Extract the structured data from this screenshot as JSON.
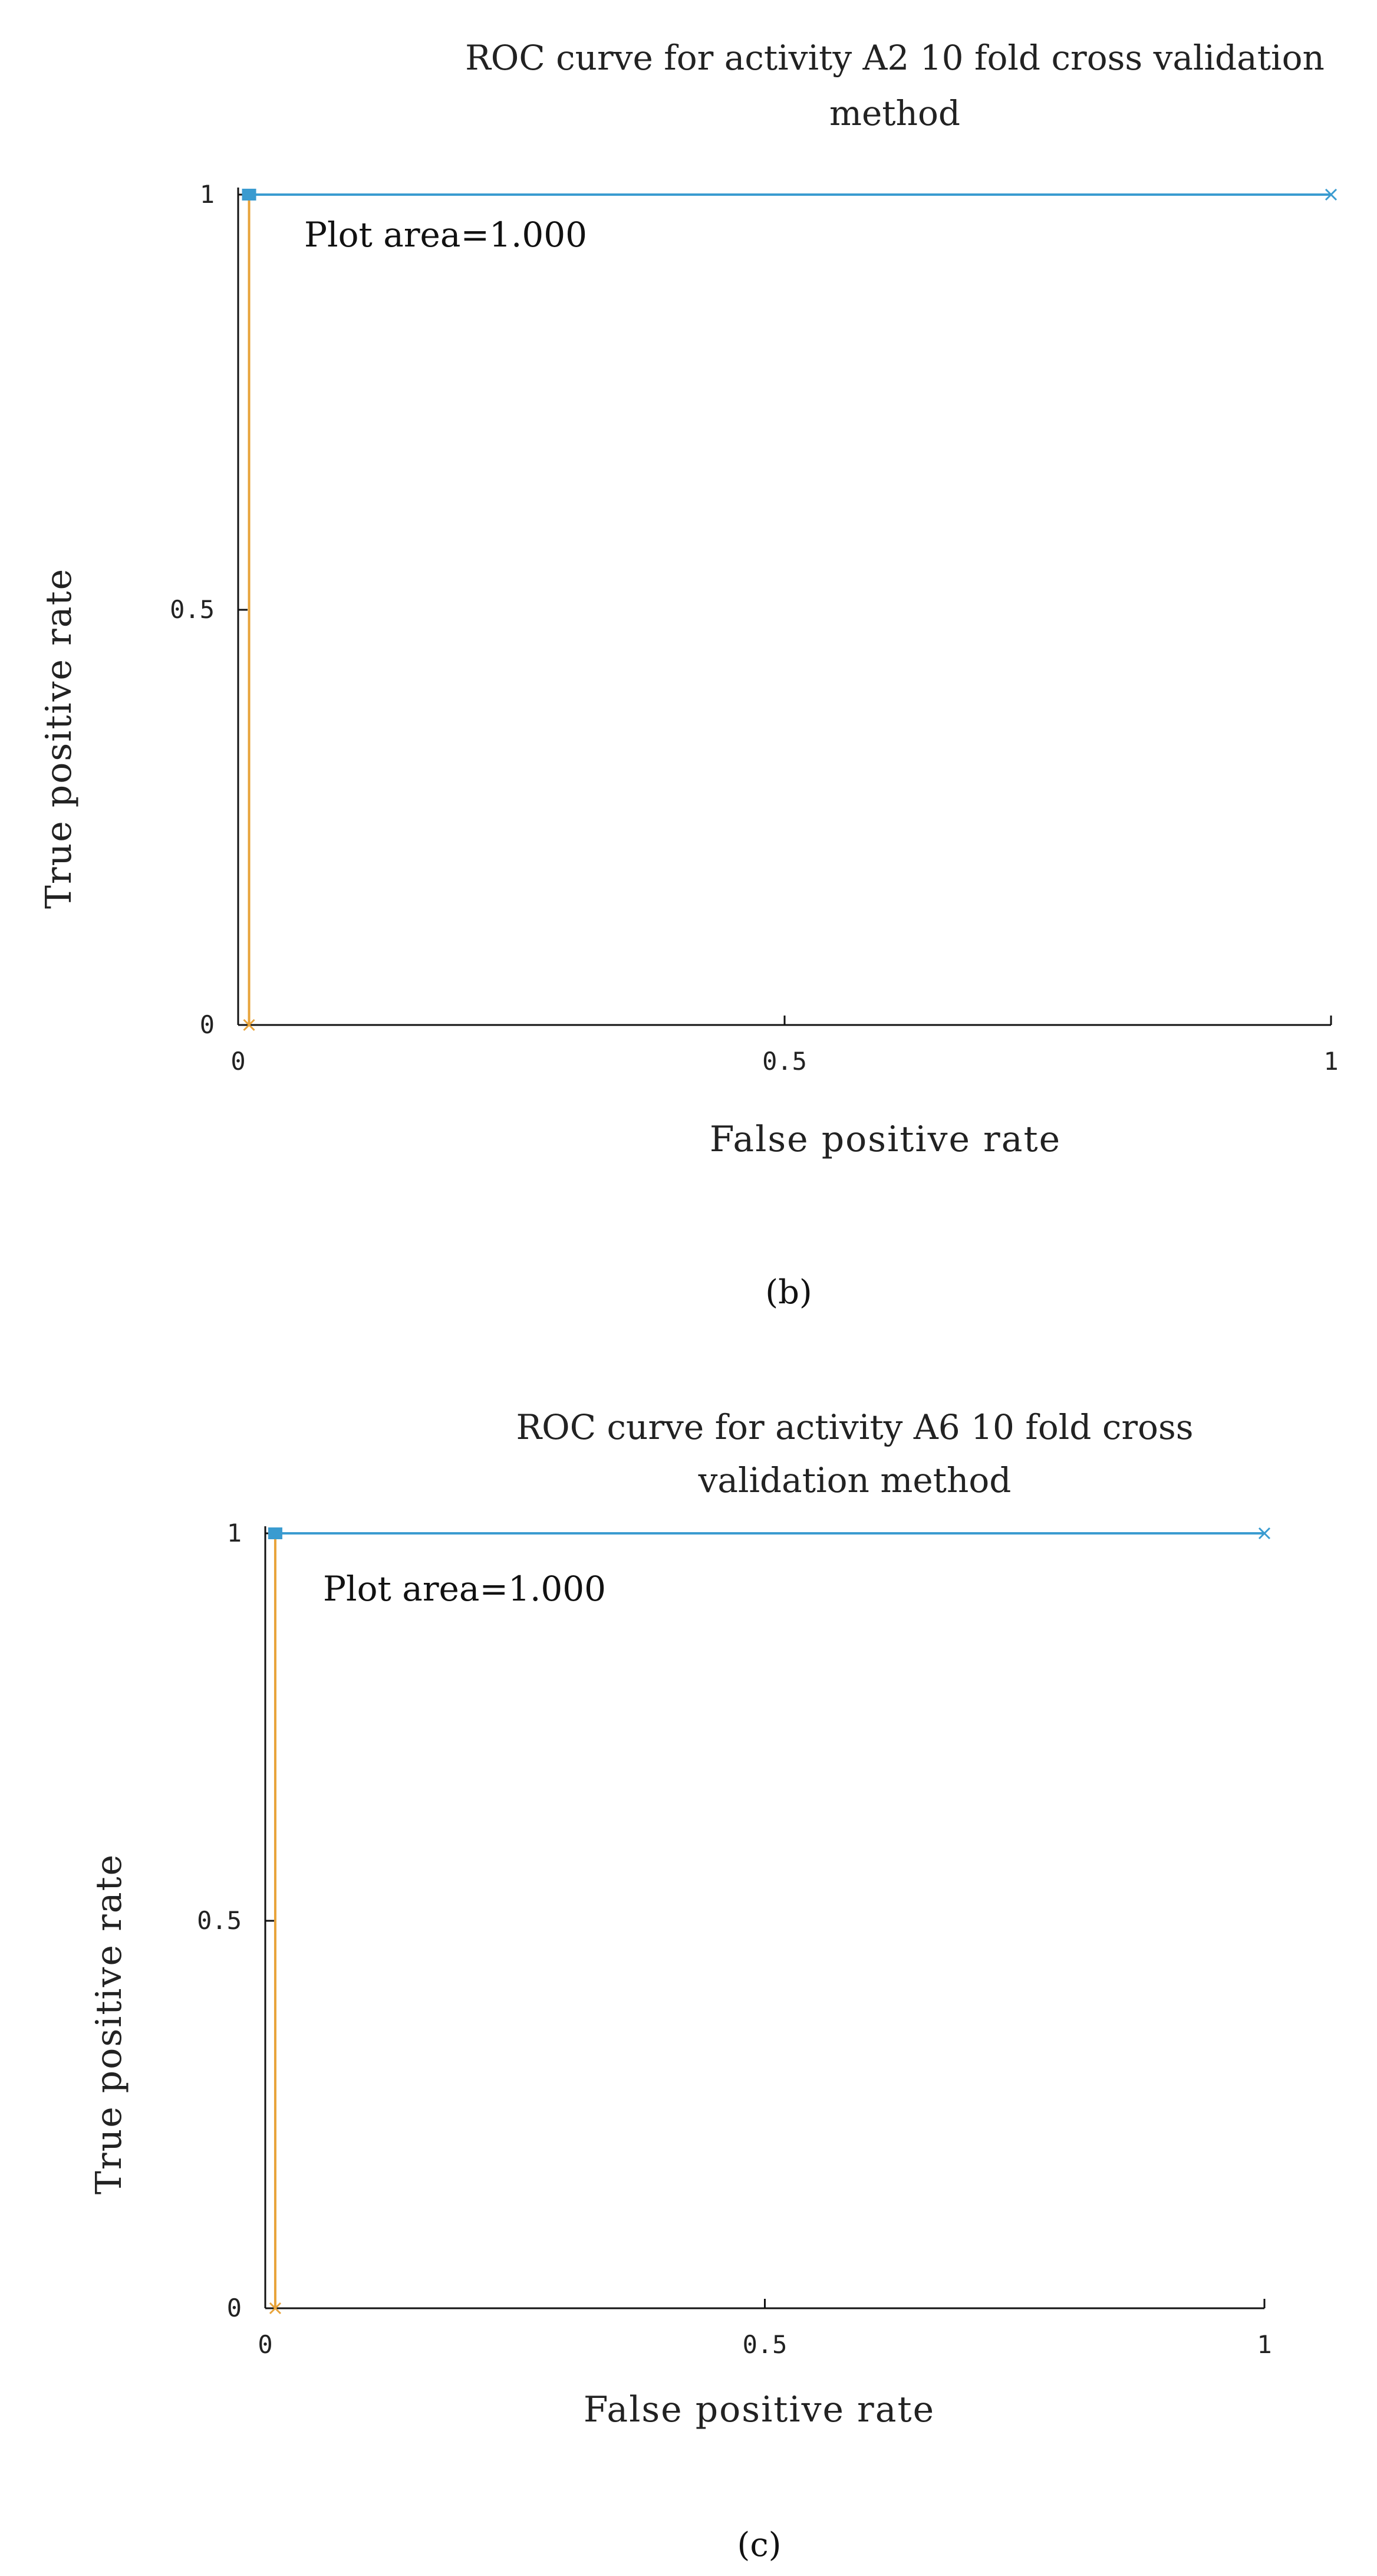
{
  "chart_data": [
    {
      "type": "line",
      "panel": "b",
      "caption": "(b)",
      "title": [
        "ROC curve for activity A2 10 fold cross validation",
        "method"
      ],
      "xlabel": "False  positive  rate",
      "ylabel": "True  positive  rate",
      "xlim": [
        0,
        1
      ],
      "ylim": [
        0,
        1
      ],
      "xticks": [
        0,
        0.5,
        1
      ],
      "yticks": [
        0,
        0.5,
        1
      ],
      "xtick_labels": [
        "0",
        "0.5",
        "1"
      ],
      "ytick_labels": [
        "0",
        "0.5",
        "1"
      ],
      "annotation": "Plot area=1.000",
      "series": [
        {
          "color": "#E8A33A",
          "x": [
            0.01,
            0.01
          ],
          "y": [
            0,
            1
          ]
        },
        {
          "color": "#3A9BD0",
          "x": [
            0.01,
            1
          ],
          "y": [
            1,
            1
          ]
        }
      ]
    },
    {
      "type": "line",
      "panel": "c",
      "caption": "(c)",
      "title": [
        "ROC curve for activity A6 10 fold cross",
        "validation method"
      ],
      "xlabel": "False  positive  rate",
      "ylabel": "True  positive  rate",
      "xlim": [
        0,
        1
      ],
      "ylim": [
        0,
        1
      ],
      "xticks": [
        0,
        0.5,
        1
      ],
      "yticks": [
        0,
        0.5,
        1
      ],
      "xtick_labels": [
        "0",
        "0.5",
        "1"
      ],
      "ytick_labels": [
        "0",
        "0.5",
        "1"
      ],
      "annotation": "Plot area=1.000",
      "series": [
        {
          "color": "#E8A33A",
          "x": [
            0.01,
            0.01
          ],
          "y": [
            0,
            1
          ]
        },
        {
          "color": "#3A9BD0",
          "x": [
            0.01,
            1
          ],
          "y": [
            1,
            1
          ]
        }
      ]
    }
  ]
}
